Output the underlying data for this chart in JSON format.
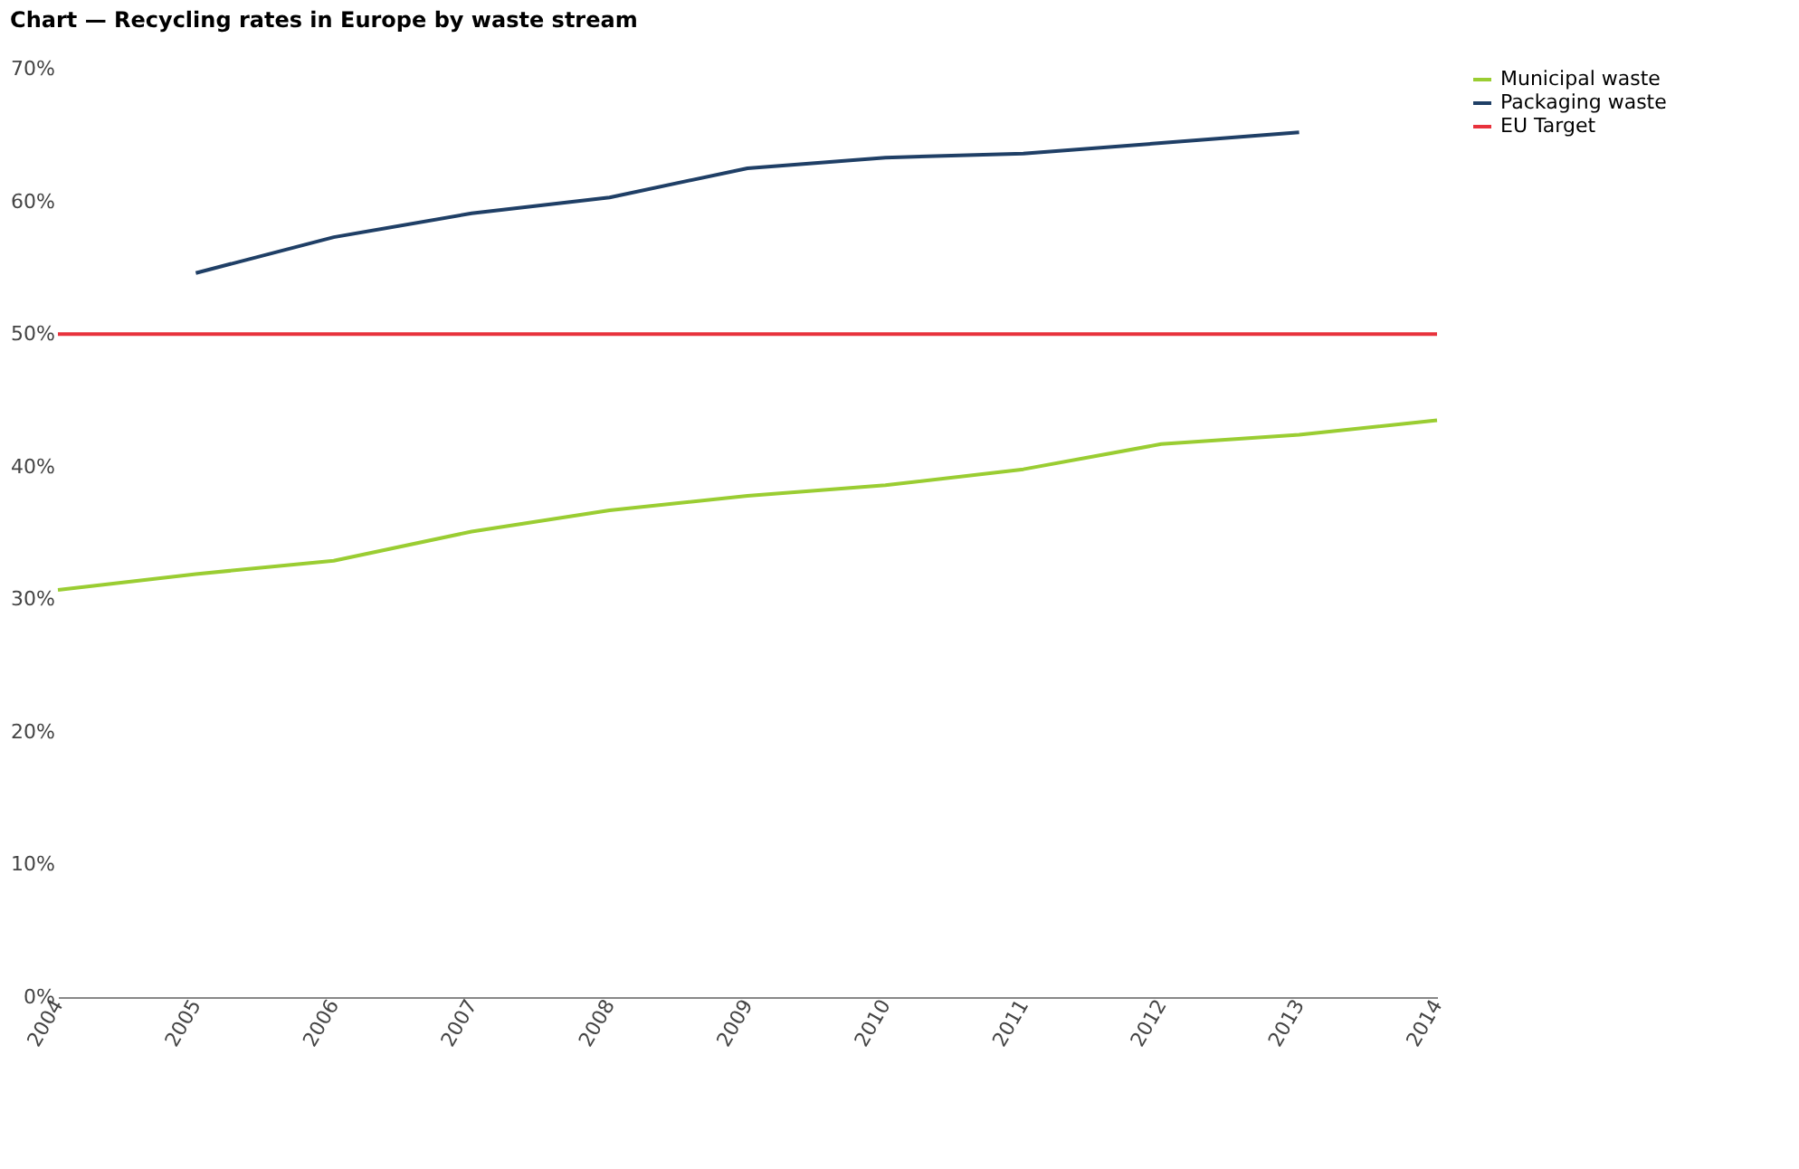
{
  "chart_data": {
    "type": "line",
    "title": "Chart — Recycling rates in Europe by waste stream",
    "categories": [
      "2004",
      "2005",
      "2006",
      "2007",
      "2008",
      "2009",
      "2010",
      "2011",
      "2012",
      "2013",
      "2014"
    ],
    "series": [
      {
        "name": "Municipal waste",
        "color": "#9acd32",
        "values": [
          30.7,
          31.9,
          32.9,
          35.1,
          36.7,
          37.8,
          38.6,
          39.8,
          41.7,
          42.4,
          43.5
        ]
      },
      {
        "name": "Packaging waste",
        "color": "#1f3f66",
        "values": [
          null,
          54.6,
          57.3,
          59.1,
          60.3,
          62.5,
          63.3,
          63.6,
          64.4,
          65.2,
          null
        ]
      }
    ],
    "ref_lines": [
      {
        "axis": "y",
        "value": 50,
        "label": "EU Target",
        "color": "#e8323c"
      }
    ],
    "ylim": [
      0,
      70
    ],
    "yticks": [
      {
        "value": 0,
        "label": "0%"
      },
      {
        "value": 10,
        "label": "10%"
      },
      {
        "value": 20,
        "label": "20%"
      },
      {
        "value": 30,
        "label": "30%"
      },
      {
        "value": 40,
        "label": "40%"
      },
      {
        "value": 50,
        "label": "50%"
      },
      {
        "value": 60,
        "label": "60%"
      },
      {
        "value": 70,
        "label": "70%"
      }
    ],
    "grid": false,
    "legend": "top right",
    "marker": "none",
    "line_style": "solid"
  }
}
